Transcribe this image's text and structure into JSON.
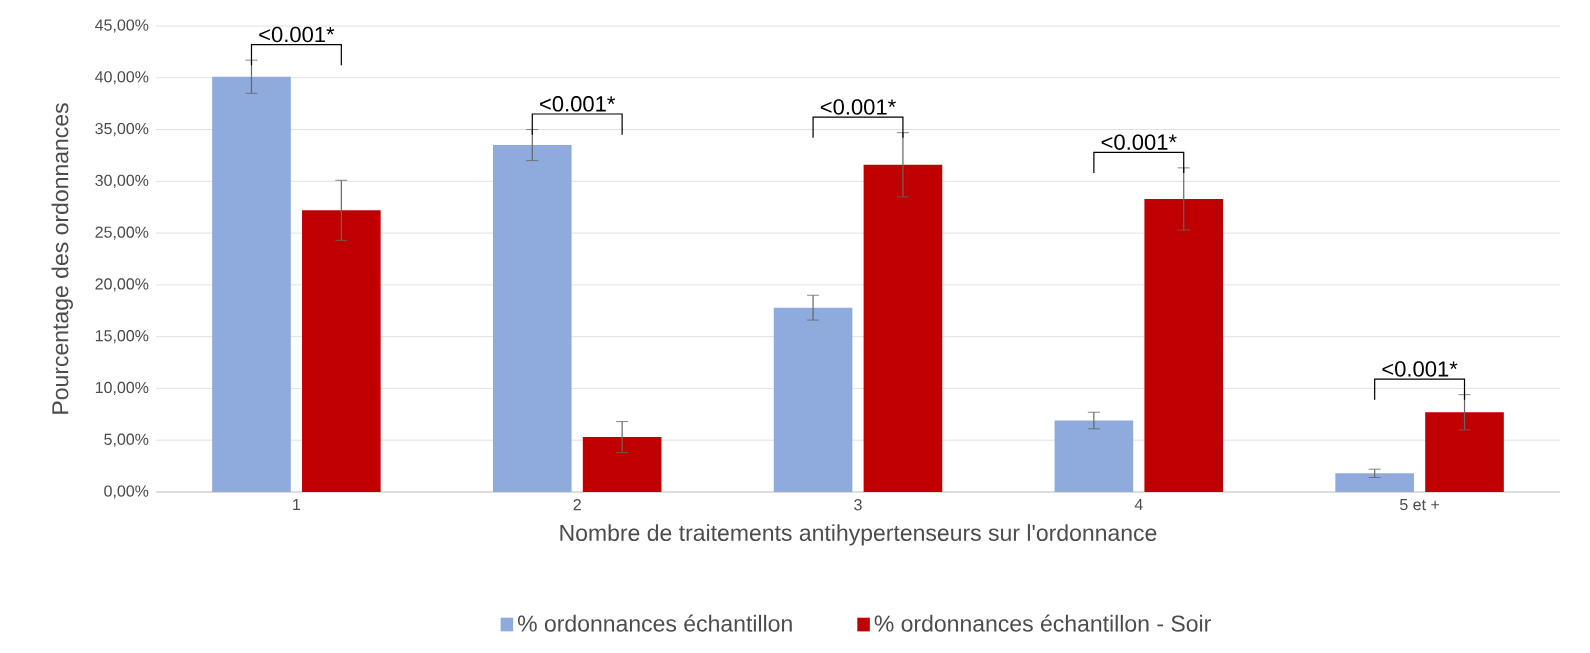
{
  "chart_data": {
    "type": "bar",
    "xlabel": "Nombre de traitements antihypertenseurs sur l'ordonnance",
    "ylabel": "Pourcentage des ordonnances",
    "categories": [
      "1",
      "2",
      "3",
      "4",
      "5 et +"
    ],
    "series": [
      {
        "name": "% ordonnances échantillon",
        "color": "#8faadc",
        "values": [
          40.1,
          33.5,
          17.8,
          6.9,
          1.8
        ],
        "errors": [
          1.6,
          1.5,
          1.2,
          0.8,
          0.4
        ]
      },
      {
        "name": "% ordonnances échantillon - Soir",
        "color": "#c00000",
        "values": [
          27.2,
          5.3,
          31.6,
          28.3,
          7.7
        ],
        "errors": [
          2.9,
          1.5,
          3.1,
          3.0,
          1.7
        ]
      }
    ],
    "ylim": [
      0,
      45
    ],
    "yticks": [
      {
        "value": 0,
        "label": "0,00%"
      },
      {
        "value": 5,
        "label": "5,00%"
      },
      {
        "value": 10,
        "label": "10,00%"
      },
      {
        "value": 15,
        "label": "15,00%"
      },
      {
        "value": 20,
        "label": "20,00%"
      },
      {
        "value": 25,
        "label": "25,00%"
      },
      {
        "value": 30,
        "label": "30,00%"
      },
      {
        "value": 35,
        "label": "35,00%"
      },
      {
        "value": 40,
        "label": "40,00%"
      },
      {
        "value": 45,
        "label": "45,00%"
      }
    ],
    "grid": "y",
    "legend": "bottom",
    "annotations": [
      "<0.001*",
      "<0.001*",
      "<0.001*",
      "<0.001*",
      "<0.001*"
    ]
  }
}
